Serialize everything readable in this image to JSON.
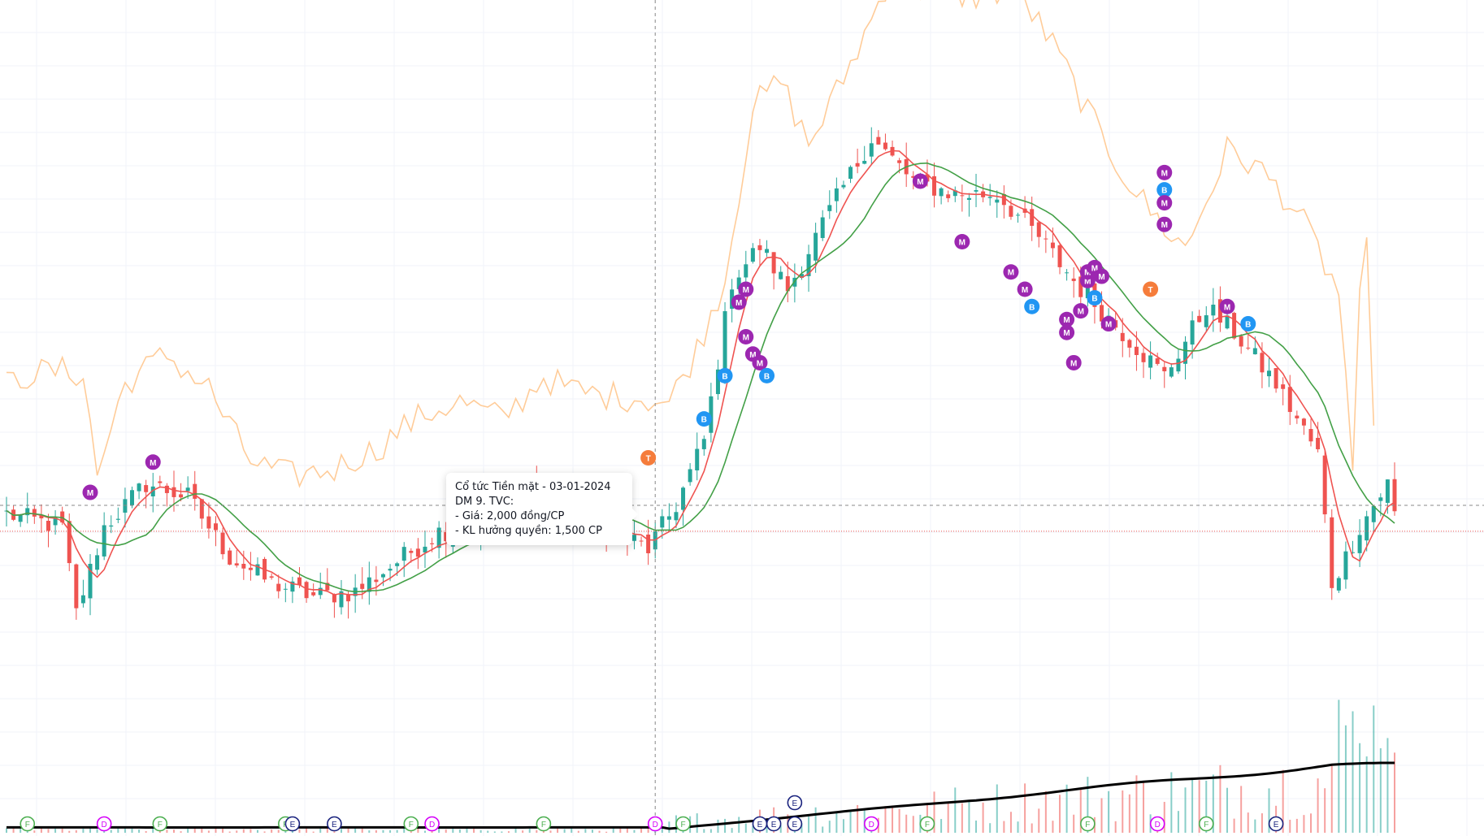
{
  "tooltip": {
    "title": "Cổ tức Tiền mặt - 03-01-2024",
    "line1": "DM 9. TVC:",
    "line2": "- Giá: 2,000 đồng/CP",
    "line3": "- KL hưởng quyền: 1,500 CP"
  },
  "colors": {
    "up": "#26a69a",
    "down": "#ef5350",
    "ma_fast": "#ef5350",
    "ma_slow": "#43a047",
    "compare_line": "#ffcc99",
    "volume_ma": "#000000",
    "marker_M": "#9c27b0",
    "marker_B": "#2196f3",
    "marker_T": "#f57c3b",
    "event_F": "#4caf50",
    "event_D": "#d500f9",
    "event_E": "#1a237e",
    "crosshair": "#888888",
    "last_price_line": "#ef5350",
    "grid": "#f0f3fa"
  },
  "chart_data": {
    "type": "candlestick",
    "bars": 200,
    "series": [
      {
        "kind": "candles",
        "close_path": [
          [
            0,
            -0.02
          ],
          [
            8,
            -0.05
          ],
          [
            10,
            -0.25
          ],
          [
            14,
            -0.05
          ],
          [
            20,
            0.05
          ],
          [
            26,
            0.02
          ],
          [
            32,
            -0.12
          ],
          [
            38,
            -0.18
          ],
          [
            44,
            -0.21
          ],
          [
            50,
            -0.2
          ],
          [
            56,
            -0.13
          ],
          [
            62,
            -0.06
          ],
          [
            68,
            -0.05
          ],
          [
            74,
            0.05
          ],
          [
            80,
            0.0
          ],
          [
            86,
            -0.05
          ],
          [
            92,
            -0.1
          ],
          [
            96,
            0.0
          ],
          [
            100,
            0.15
          ],
          [
            104,
            0.52
          ],
          [
            108,
            0.6
          ],
          [
            112,
            0.5
          ],
          [
            118,
            0.68
          ],
          [
            124,
            0.85
          ],
          [
            130,
            0.75
          ],
          [
            136,
            0.72
          ],
          [
            142,
            0.72
          ],
          [
            148,
            0.62
          ],
          [
            154,
            0.5
          ],
          [
            160,
            0.4
          ],
          [
            166,
            0.3
          ],
          [
            172,
            0.46
          ],
          [
            176,
            0.4
          ],
          [
            182,
            0.28
          ],
          [
            188,
            0.12
          ],
          [
            190,
            -0.18
          ],
          [
            192,
            -0.12
          ],
          [
            194,
            -0.05
          ],
          [
            196,
            0.0
          ],
          [
            198,
            0.05
          ],
          [
            199,
            -0.02
          ]
        ]
      },
      {
        "kind": "ma_fast",
        "name": ""
      },
      {
        "kind": "ma_slow",
        "name": ""
      },
      {
        "kind": "compare_line",
        "name": ""
      },
      {
        "kind": "volume",
        "name": ""
      },
      {
        "kind": "volume_ma",
        "name": ""
      }
    ],
    "markers": [
      {
        "bar": 12,
        "label": "M",
        "color": "marker_M",
        "level": 0.03
      },
      {
        "bar": 21,
        "label": "M",
        "color": "marker_M",
        "level": 0.1
      },
      {
        "bar": 92,
        "label": "T",
        "color": "marker_T",
        "level": 0.11
      },
      {
        "bar": 100,
        "label": "B",
        "color": "marker_B",
        "level": 0.2
      },
      {
        "bar": 103,
        "label": "B",
        "color": "marker_B",
        "level": 0.3
      },
      {
        "bar": 105,
        "label": "M",
        "color": "marker_M",
        "level": 0.47
      },
      {
        "bar": 106,
        "label": "M",
        "color": "marker_M",
        "level": 0.5
      },
      {
        "bar": 106,
        "label": "M",
        "color": "marker_M",
        "level": 0.39
      },
      {
        "bar": 107,
        "label": "M",
        "color": "marker_M",
        "level": 0.35
      },
      {
        "bar": 108,
        "label": "M",
        "color": "marker_M",
        "level": 0.33
      },
      {
        "bar": 109,
        "label": "B",
        "color": "marker_B",
        "level": 0.3
      },
      {
        "bar": 131,
        "label": "M",
        "color": "marker_M",
        "level": 0.75
      },
      {
        "bar": 137,
        "label": "M",
        "color": "marker_M",
        "level": 0.61
      },
      {
        "bar": 144,
        "label": "M",
        "color": "marker_M",
        "level": 0.54
      },
      {
        "bar": 146,
        "label": "M",
        "color": "marker_M",
        "level": 0.5
      },
      {
        "bar": 147,
        "label": "B",
        "color": "marker_B",
        "level": 0.46
      },
      {
        "bar": 152,
        "label": "M",
        "color": "marker_M",
        "level": 0.43
      },
      {
        "bar": 152,
        "label": "M",
        "color": "marker_M",
        "level": 0.4
      },
      {
        "bar": 153,
        "label": "M",
        "color": "marker_M",
        "level": 0.33
      },
      {
        "bar": 154,
        "label": "M",
        "color": "marker_M",
        "level": 0.45
      },
      {
        "bar": 155,
        "label": "M",
        "color": "marker_M",
        "level": 0.52
      },
      {
        "bar": 155,
        "label": "M",
        "color": "marker_M",
        "level": 0.54
      },
      {
        "bar": 156,
        "label": "M",
        "color": "marker_M",
        "level": 0.55
      },
      {
        "bar": 156,
        "label": "B",
        "color": "marker_B",
        "level": 0.48
      },
      {
        "bar": 157,
        "label": "M",
        "color": "marker_M",
        "level": 0.53
      },
      {
        "bar": 158,
        "label": "M",
        "color": "marker_M",
        "level": 0.42
      },
      {
        "bar": 164,
        "label": "T",
        "color": "marker_T",
        "level": 0.5
      },
      {
        "bar": 166,
        "label": "M",
        "color": "marker_M",
        "level": 0.77
      },
      {
        "bar": 166,
        "label": "B",
        "color": "marker_B",
        "level": 0.73
      },
      {
        "bar": 166,
        "label": "M",
        "color": "marker_M",
        "level": 0.7
      },
      {
        "bar": 166,
        "label": "M",
        "color": "marker_M",
        "level": 0.65
      },
      {
        "bar": 175,
        "label": "M",
        "color": "marker_M",
        "level": 0.46
      },
      {
        "bar": 178,
        "label": "B",
        "color": "marker_B",
        "level": 0.42
      }
    ],
    "events": [
      {
        "bar": 3,
        "label": "F",
        "color": "event_F"
      },
      {
        "bar": 14,
        "label": "D",
        "color": "event_D"
      },
      {
        "bar": 22,
        "label": "F",
        "color": "event_F"
      },
      {
        "bar": 40,
        "label": "F",
        "color": "event_F"
      },
      {
        "bar": 41,
        "label": "E",
        "color": "event_E"
      },
      {
        "bar": 47,
        "label": "E",
        "color": "event_E"
      },
      {
        "bar": 58,
        "label": "F",
        "color": "event_F"
      },
      {
        "bar": 61,
        "label": "D",
        "color": "event_D"
      },
      {
        "bar": 77,
        "label": "F",
        "color": "event_F"
      },
      {
        "bar": 93,
        "label": "D",
        "color": "event_D"
      },
      {
        "bar": 97,
        "label": "F",
        "color": "event_F"
      },
      {
        "bar": 108,
        "label": "E",
        "color": "event_E"
      },
      {
        "bar": 110,
        "label": "E",
        "color": "event_E"
      },
      {
        "bar": 113,
        "label": "E",
        "color": "event_E"
      },
      {
        "bar": 113,
        "label": "E",
        "color": "event_E",
        "row": 1
      },
      {
        "bar": 124,
        "label": "D",
        "color": "event_D"
      },
      {
        "bar": 132,
        "label": "F",
        "color": "event_F"
      },
      {
        "bar": 155,
        "label": "F",
        "color": "event_F"
      },
      {
        "bar": 165,
        "label": "D",
        "color": "event_D"
      },
      {
        "bar": 172,
        "label": "F",
        "color": "event_F"
      },
      {
        "bar": 182,
        "label": "E",
        "color": "event_E"
      }
    ],
    "crosshair_bar": 93,
    "last_price_level": -0.06,
    "grid": true
  }
}
